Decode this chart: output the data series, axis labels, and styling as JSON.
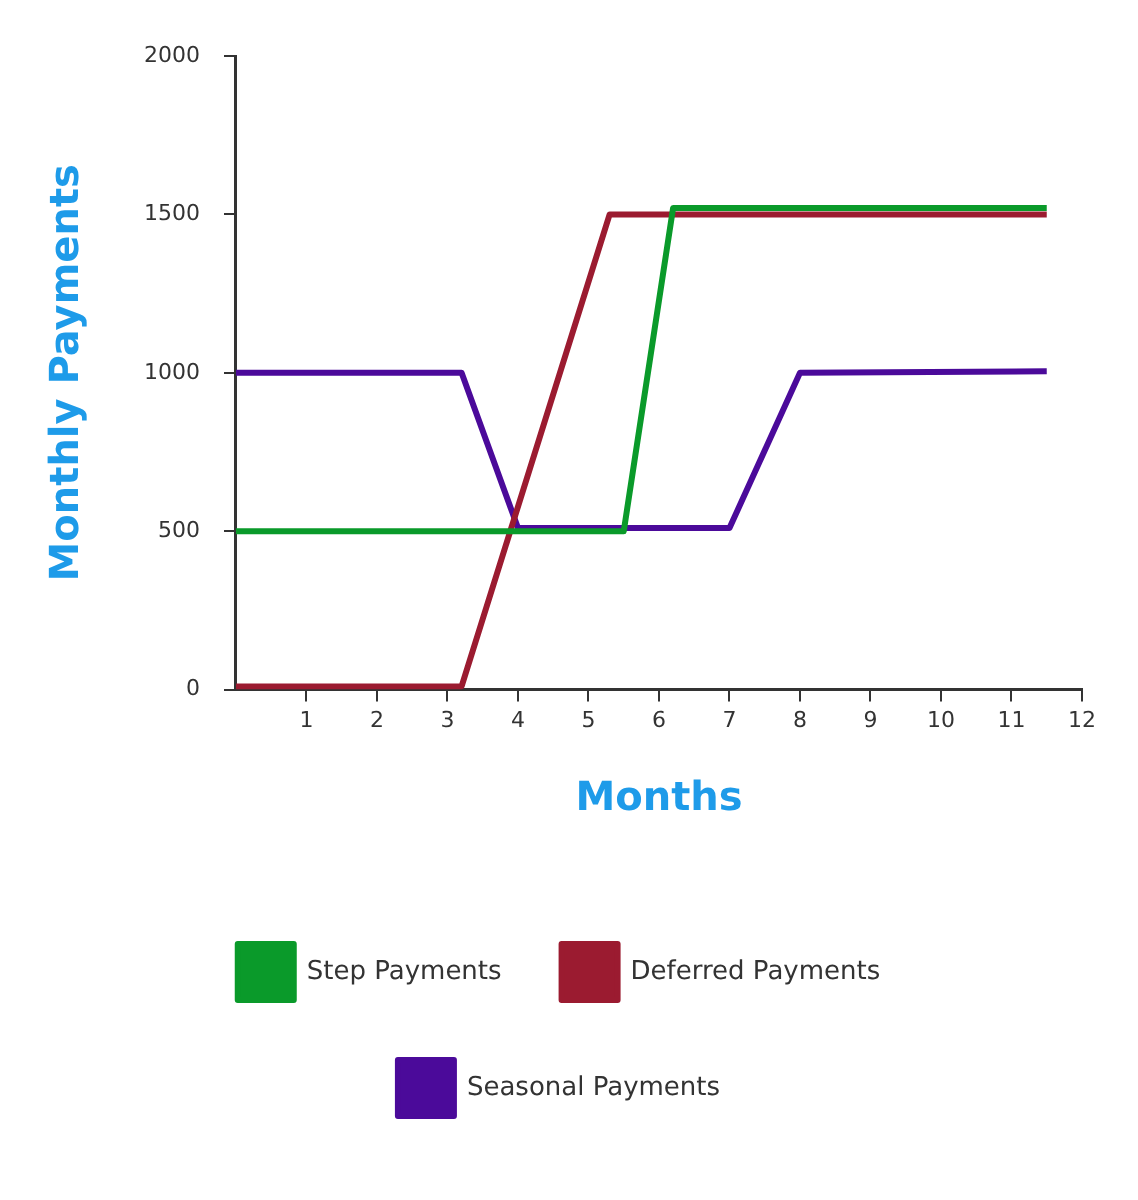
{
  "chart_data": {
    "type": "line",
    "xlabel": "Months",
    "ylabel": "Monthly Payments",
    "xlim": [
      0,
      12
    ],
    "xticks": [
      1,
      2,
      3,
      4,
      5,
      6,
      7,
      8,
      9,
      10,
      11,
      12
    ],
    "ylim": [
      0,
      2000
    ],
    "yticks": [
      0,
      500,
      1000,
      1500,
      2000
    ],
    "grid": false,
    "legend": "bottom",
    "marker": "none",
    "line_style": "solid",
    "series": [
      {
        "name": "Step Payments",
        "color": "#0a9a2a",
        "x": [
          0,
          5.5,
          6.2,
          11.5
        ],
        "values": [
          500,
          500,
          1520,
          1520
        ]
      },
      {
        "name": "Deferred Payments",
        "color": "#9b1b30",
        "x": [
          0,
          3.2,
          5.3,
          11.5
        ],
        "values": [
          10,
          10,
          1500,
          1500
        ]
      },
      {
        "name": "Seasonal Payments",
        "color": "#4b0a9a",
        "x": [
          0,
          3.2,
          4,
          7,
          8,
          11.5
        ],
        "values": [
          1000,
          1000,
          510,
          510,
          1000,
          1005
        ]
      }
    ]
  }
}
